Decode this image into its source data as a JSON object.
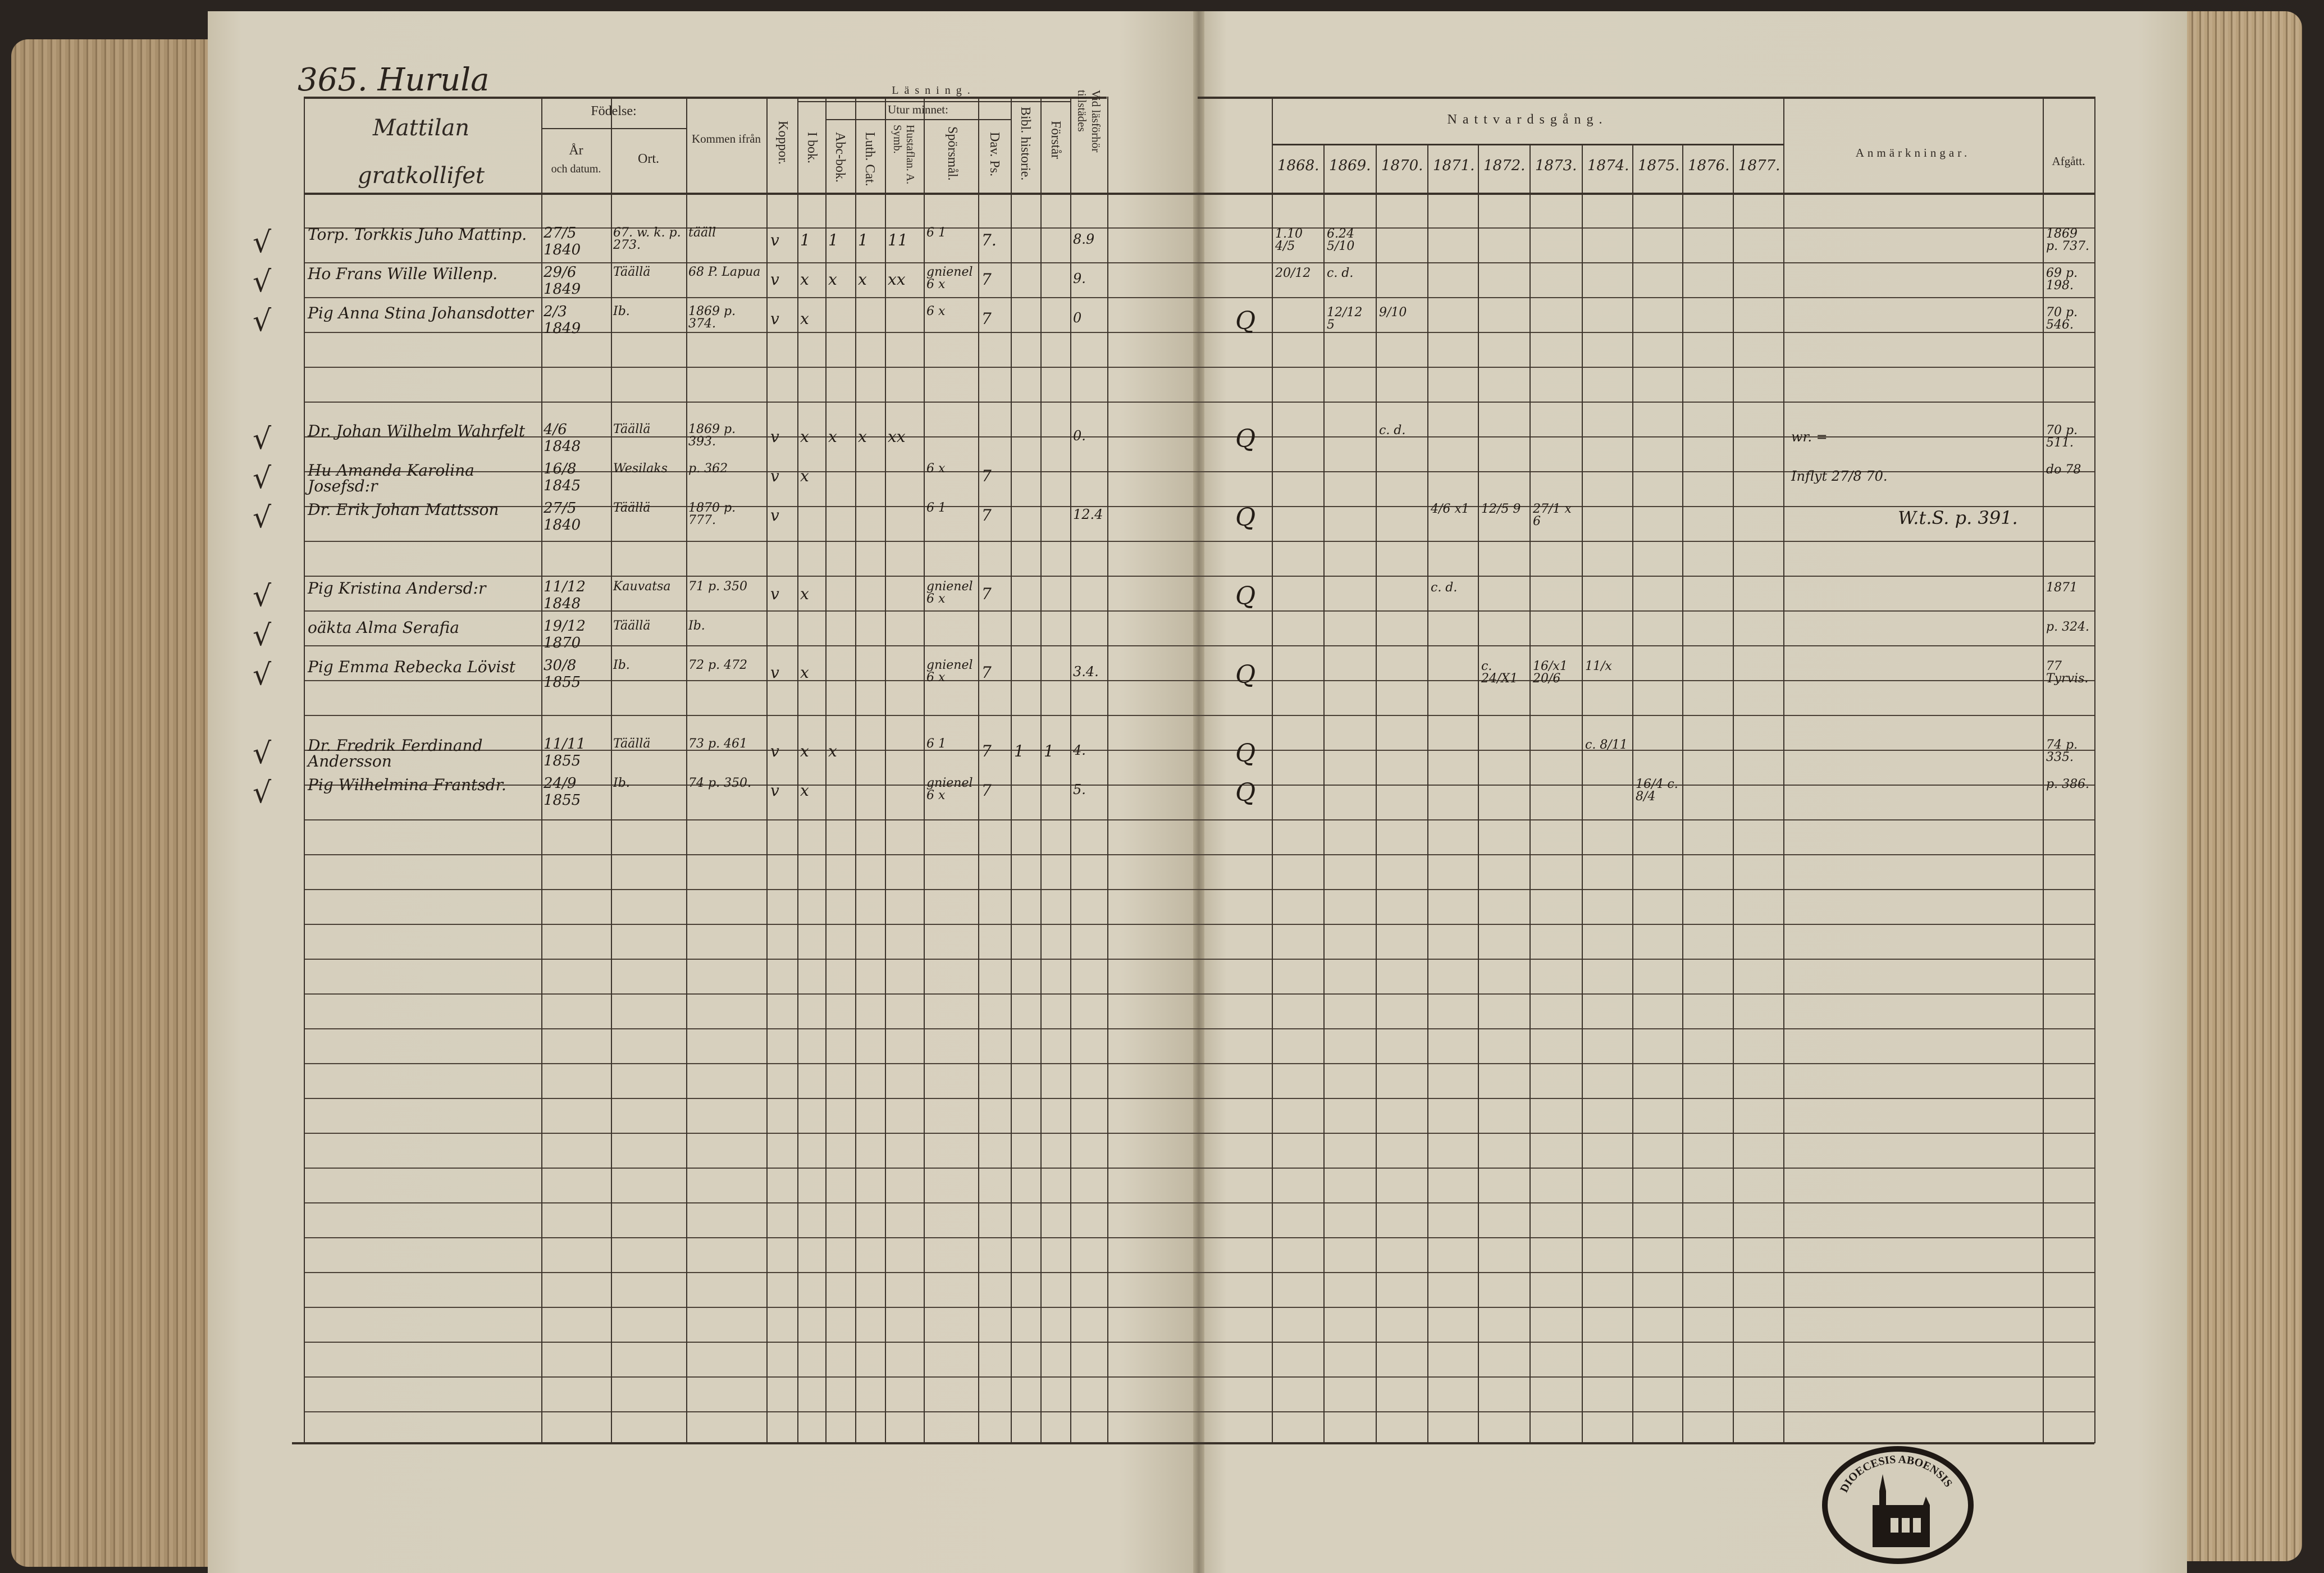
{
  "left_page": {
    "title": "365. Hurula",
    "headers": {
      "name_line1": "Mattilan",
      "name_line2": "gratkollifet",
      "fodelse": "Födelse:",
      "ar_och_datum_1": "År",
      "ar_och_datum_2": "och datum.",
      "ort": "Ort.",
      "kommen_ifran": "Kommen ifrån",
      "koppor": "Koppor.",
      "lasning": "Läsning.",
      "utur_minnet": "Utur minnet:",
      "i_bok": "I bok.",
      "abc_bok": "Abc-bok.",
      "luth_cat": "Luth. Cat.",
      "hustaflan": "Hustaflan. A. Symb.",
      "sporsmal": "Spörsmål.",
      "dav_ps": "Dav. Ps.",
      "bibl_historie": "Bibl. historie.",
      "forstar": "Förstår",
      "vid_lasforhor": "Vid läsförhör tillstädes"
    }
  },
  "right_page": {
    "headers": {
      "nattvardsgang": "Nattvardsgång.",
      "years": [
        "1868.",
        "1869.",
        "1870.",
        "1871.",
        "1872.",
        "1873.",
        "1874.",
        "1875.",
        "1876.",
        "1877."
      ],
      "anmarkningar": "Anmärkningar.",
      "afgatt": "Afgått."
    }
  },
  "entries": [
    {
      "check": "√",
      "name": "Torp. Torkkis Juho Mattinp.",
      "day": "27/5",
      "year": "1840",
      "ort": "67. w. k. p. 273.",
      "kommen": "tääll",
      "koppor": "v",
      "i_bok": "1",
      "abc": "1",
      "luth": "1",
      "husta": "11",
      "spors": "6 1",
      "dav": "7.",
      "bibl": "",
      "forstar": "",
      "vid": "8.9",
      "mark": "",
      "natt": [
        {
          "col": 0,
          "text": "1.10 4/5"
        },
        {
          "col": 1,
          "text": "6.24 5/10"
        }
      ],
      "anm": "",
      "afgatt": "1869 p. 737."
    },
    {
      "check": "√",
      "name": "Ho Frans Wille Willenp.",
      "day": "29/6",
      "year": "1849",
      "ort": "Täällä",
      "kommen": "68 P. Lapua",
      "koppor": "v",
      "i_bok": "x",
      "abc": "x",
      "luth": "x",
      "husta": "xx",
      "spors": "gnienel 6 x",
      "dav": "7",
      "bibl": "",
      "forstar": "",
      "vid": "9.",
      "mark": "",
      "natt": [
        {
          "col": 0,
          "text": "20/12"
        },
        {
          "col": 1,
          "text": "c. d."
        }
      ],
      "anm": "",
      "afgatt": "69 p. 198."
    },
    {
      "check": "√",
      "name": "Pig Anna Stina Johansdotter",
      "day": "2/3",
      "year": "1849",
      "ort": "Ib.",
      "kommen": "1869 p. 374.",
      "koppor": "v",
      "i_bok": "x",
      "abc": "",
      "luth": "",
      "husta": "",
      "spors": "6 x",
      "dav": "7",
      "bibl": "",
      "forstar": "",
      "vid": "0",
      "mark": "Q",
      "natt": [
        {
          "col": 1,
          "text": "12/12 5"
        },
        {
          "col": 2,
          "text": "9/10"
        }
      ],
      "anm": "",
      "afgatt": "70 p. 546."
    },
    {
      "check": "√",
      "name": "Dr. Johan Wilhelm Wahrfelt",
      "day": "4/6",
      "year": "1848",
      "ort": "Täällä",
      "kommen": "1869 p. 393.",
      "koppor": "v",
      "i_bok": "x",
      "abc": "x",
      "luth": "x",
      "husta": "xx",
      "spors": "",
      "dav": "",
      "bibl": "",
      "forstar": "",
      "vid": "0.",
      "mark": "Q",
      "natt": [
        {
          "col": 2,
          "text": "c. d."
        }
      ],
      "anm": "wr. =",
      "afgatt": "70 p. 511."
    },
    {
      "check": "√",
      "name": "Hu Amanda Karolina Josefsd:r",
      "day": "16/8",
      "year": "1845",
      "ort": "Wesilaks",
      "kommen": "p. 362",
      "koppor": "v",
      "i_bok": "x",
      "abc": "",
      "luth": "",
      "husta": "",
      "spors": "6 x",
      "dav": "7",
      "bibl": "",
      "forstar": "",
      "vid": "",
      "mark": "",
      "natt": [],
      "anm": "Inflyt 27/8 70.",
      "afgatt": "do 78"
    },
    {
      "check": "√",
      "name": "Dr. Erik Johan Mattsson",
      "day": "27/5",
      "year": "1840",
      "ort": "Täällä",
      "kommen": "1870 p. 777.",
      "koppor": "v",
      "i_bok": "",
      "abc": "",
      "luth": "",
      "husta": "",
      "spors": "6 1",
      "dav": "7",
      "bibl": "",
      "forstar": "",
      "vid": "12.4",
      "mark": "Q",
      "natt": [
        {
          "col": 3,
          "text": "4/6 x1"
        },
        {
          "col": 4,
          "text": "12/5 9"
        },
        {
          "col": 5,
          "text": "27/1 x 6"
        }
      ],
      "anm": "W.t.S. p. 391.",
      "afgatt": ""
    },
    {
      "check": "√",
      "name": "Pig Kristina Andersd:r",
      "day": "11/12",
      "year": "1848",
      "ort": "Kauvatsa",
      "kommen": "71 p. 350",
      "koppor": "v",
      "i_bok": "x",
      "abc": "",
      "luth": "",
      "husta": "",
      "spors": "gnienel 6 x",
      "dav": "7",
      "bibl": "",
      "forstar": "",
      "vid": "",
      "mark": "Q",
      "natt": [
        {
          "col": 3,
          "text": "c. d."
        }
      ],
      "anm": "",
      "afgatt": "1871"
    },
    {
      "check": "√",
      "name": "oäkta Alma Serafia",
      "day": "19/12",
      "year": "1870",
      "ort": "Täällä",
      "kommen": "Ib.",
      "koppor": "",
      "i_bok": "",
      "abc": "",
      "luth": "",
      "husta": "",
      "spors": "",
      "dav": "",
      "bibl": "",
      "forstar": "",
      "vid": "",
      "mark": "",
      "natt": [],
      "anm": "",
      "afgatt": "p. 324."
    },
    {
      "check": "√",
      "name": "Pig Emma Rebecka Lövist",
      "day": "30/8",
      "year": "1855",
      "ort": "Ib.",
      "kommen": "72 p. 472",
      "koppor": "v",
      "i_bok": "x",
      "abc": "",
      "luth": "",
      "husta": "",
      "spors": "gnienel 6 x",
      "dav": "7",
      "bibl": "",
      "forstar": "",
      "vid": "3.4.",
      "mark": "Q",
      "natt": [
        {
          "col": 4,
          "text": "c. 24/X1"
        },
        {
          "col": 5,
          "text": "16/x1 20/6"
        },
        {
          "col": 6,
          "text": "11/x"
        }
      ],
      "anm": "",
      "afgatt": "77 Tyrvis."
    },
    {
      "check": "√",
      "name": "Dr. Fredrik Ferdinand Andersson",
      "day": "11/11",
      "year": "1855",
      "ort": "Täällä",
      "kommen": "73 p. 461",
      "koppor": "v",
      "i_bok": "x",
      "abc": "x",
      "luth": "",
      "husta": "",
      "spors": "6 1",
      "dav": "7",
      "bibl": "1",
      "forstar": "1",
      "vid": "4.",
      "mark": "Q",
      "natt": [
        {
          "col": 6,
          "text": "c. 8/11"
        }
      ],
      "anm": "",
      "afgatt": "74 p. 335."
    },
    {
      "check": "√",
      "name": "Pig Wilhelmina Frantsdr.",
      "day": "24/9",
      "year": "1855",
      "ort": "Ib.",
      "kommen": "74 p. 350.",
      "koppor": "v",
      "i_bok": "x",
      "abc": "",
      "luth": "",
      "husta": "",
      "spors": "gnienel 6 x",
      "dav": "7",
      "bibl": "",
      "forstar": "",
      "vid": "5.",
      "mark": "Q",
      "natt": [
        {
          "col": 7,
          "text": "16/4 c. 8/4"
        }
      ],
      "anm": "",
      "afgatt": "p. 386."
    }
  ],
  "stamp": {
    "text": "DIOECESIS ABOENSIS"
  }
}
